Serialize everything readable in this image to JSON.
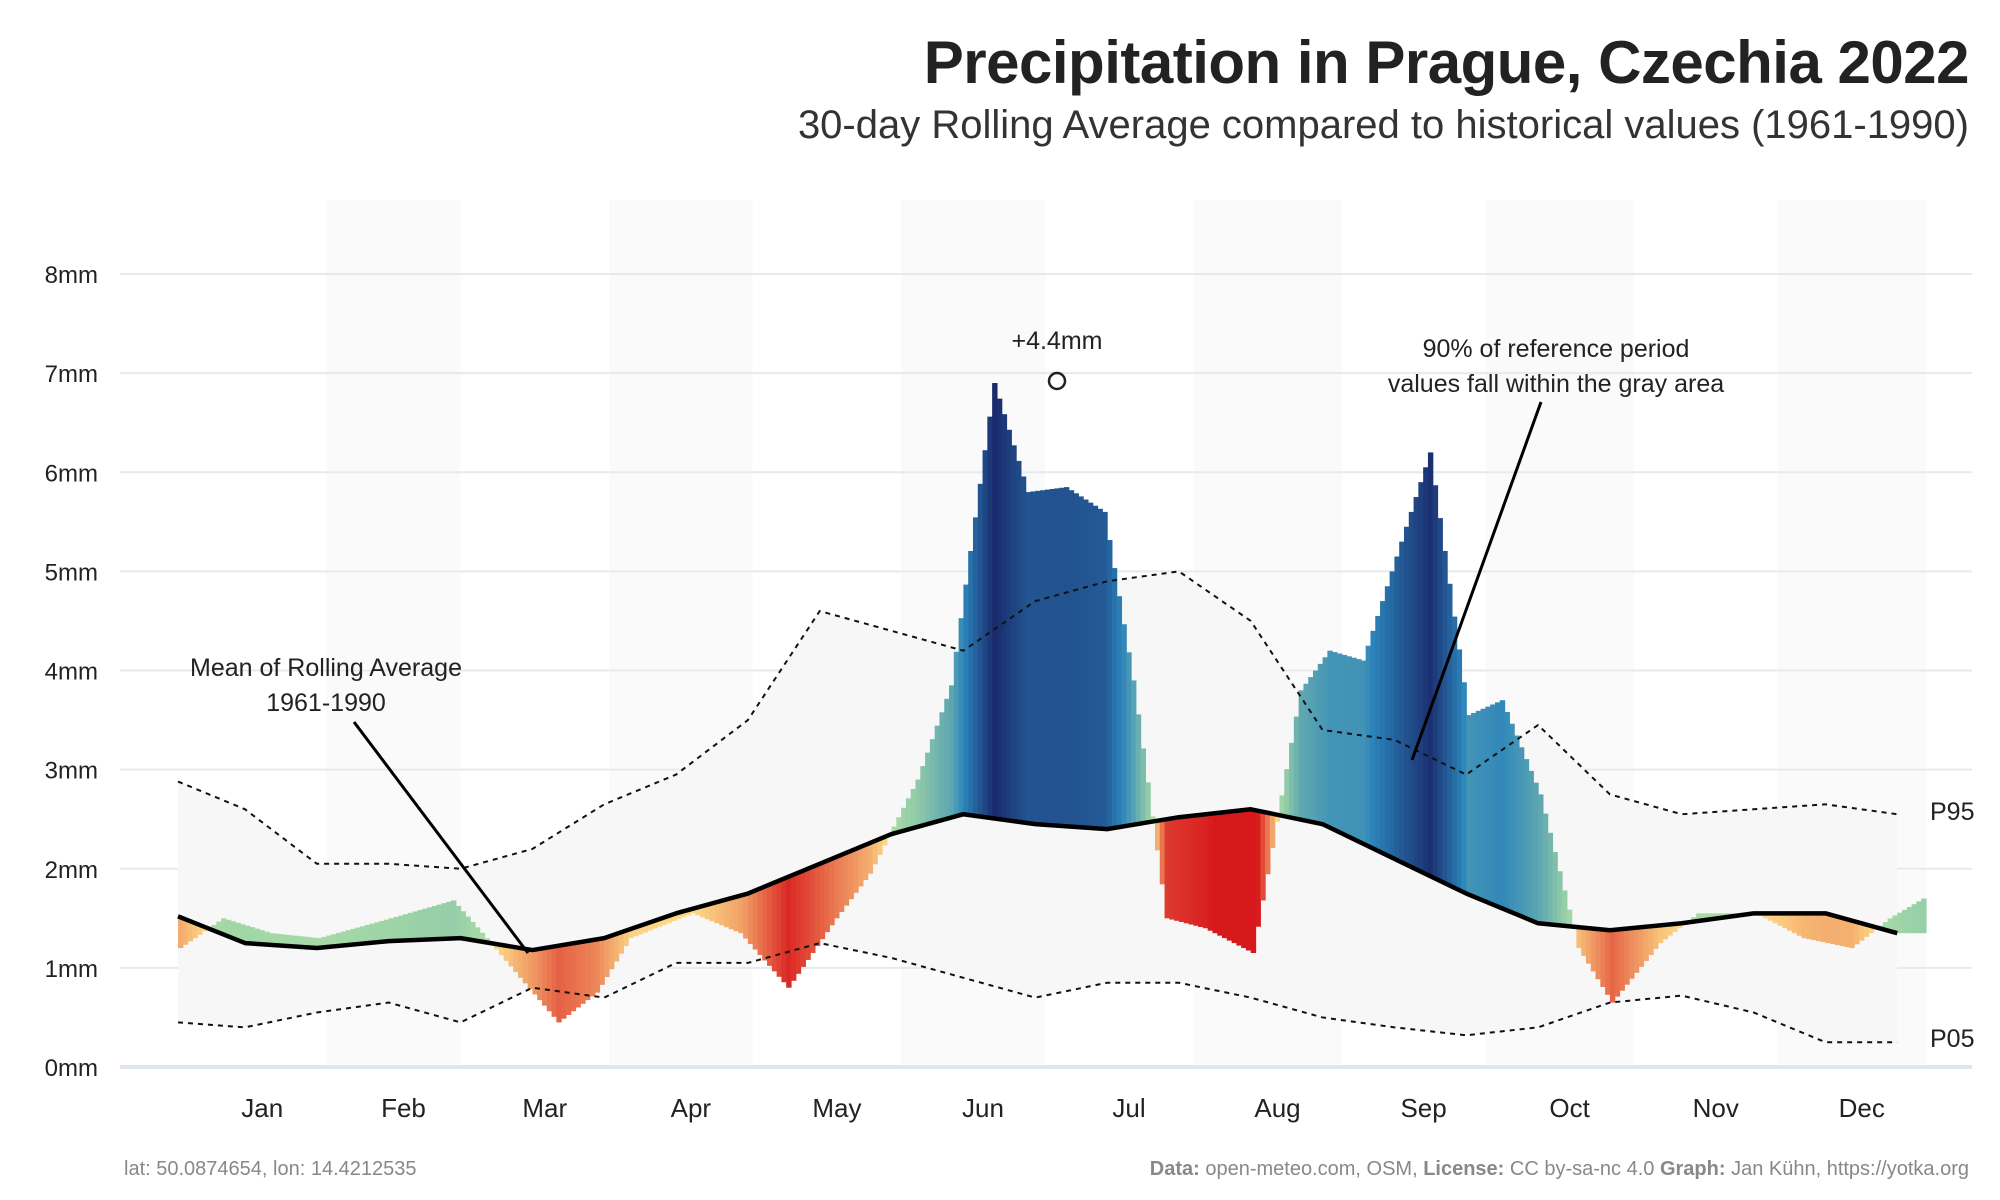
{
  "title": "Precipitation in Prague, Czechia 2022",
  "subtitle": "30-day Rolling Average compared to historical values (1961-1990)",
  "footer": {
    "location": "lat: 50.0874654, lon: 14.4212535",
    "data_label": "Data:",
    "data_value": " open-meteo.com, OSM, ",
    "license_label": "License:",
    "license_value": " CC by-sa-nc 4.0  ",
    "graph_label": "Graph:",
    "graph_value": " Jan Kühn, https://yotka.org"
  },
  "chart_data": {
    "type": "area",
    "y_unit": "mm",
    "ylim": [
      0,
      8
    ],
    "yticks": [
      "0mm",
      "1mm",
      "2mm",
      "3mm",
      "4mm",
      "5mm",
      "6mm",
      "7mm",
      "8mm"
    ],
    "months": [
      "Jan",
      "Feb",
      "Mar",
      "Apr",
      "May",
      "Jun",
      "Jul",
      "Aug",
      "Sep",
      "Oct",
      "Nov",
      "Dec"
    ],
    "day_of_year": [
      1,
      15,
      30,
      45,
      60,
      75,
      90,
      105,
      120,
      135,
      150,
      165,
      180,
      195,
      210,
      225,
      240,
      255,
      270,
      285,
      300,
      315,
      330,
      345,
      360
    ],
    "mean_1961_1990": [
      1.52,
      1.25,
      1.2,
      1.27,
      1.3,
      1.18,
      1.3,
      1.55,
      1.75,
      2.05,
      2.35,
      2.55,
      2.45,
      2.4,
      2.52,
      2.6,
      2.45,
      2.1,
      1.75,
      1.45,
      1.38,
      1.45,
      1.55,
      1.55,
      1.35
    ],
    "p95": [
      2.88,
      2.6,
      2.05,
      2.05,
      2.0,
      2.2,
      2.65,
      2.95,
      3.5,
      4.6,
      4.4,
      4.2,
      4.7,
      4.9,
      5.0,
      4.5,
      3.4,
      3.3,
      2.95,
      3.45,
      2.75,
      2.55,
      2.6,
      2.65,
      2.55
    ],
    "p05": [
      0.45,
      0.4,
      0.55,
      0.65,
      0.45,
      0.8,
      0.7,
      1.05,
      1.05,
      1.25,
      1.1,
      0.9,
      0.7,
      0.85,
      0.85,
      0.7,
      0.5,
      0.4,
      0.32,
      0.4,
      0.65,
      0.72,
      0.55,
      0.25,
      0.25
    ],
    "rolling_2022": [
      1.2,
      1.5,
      1.35,
      1.3,
      1.5,
      1.68,
      1.3,
      0.9,
      0.45,
      0.75,
      1.3,
      1.55,
      1.35,
      0.8,
      1.5,
      1.95,
      2.9,
      3.85,
      6.9,
      5.8,
      5.85,
      5.6,
      3.9,
      1.5,
      1.4,
      1.15,
      3.8,
      4.2,
      4.1,
      5.0,
      6.2,
      3.55,
      3.7,
      2.75,
      1.2,
      0.65,
      1.25,
      1.55,
      1.55,
      1.3,
      1.2,
      1.5,
      1.7
    ],
    "rolling_2022_day": [
      1,
      10,
      20,
      30,
      45,
      58,
      65,
      72,
      80,
      88,
      95,
      108,
      118,
      128,
      138,
      145,
      155,
      162,
      171,
      178,
      186,
      194,
      200,
      207,
      215,
      225,
      235,
      241,
      248,
      254,
      262,
      270,
      277,
      285,
      293,
      300,
      310,
      318,
      330,
      340,
      350,
      358,
      365
    ],
    "annotations": {
      "peak_label": "+4.4mm",
      "gray_area_line1": "90% of reference period",
      "gray_area_line2": "values fall within the gray area",
      "mean_line1": "Mean of Rolling Average",
      "mean_line2": "1961-1990",
      "p95_label": "P95",
      "p05_label": "P05"
    },
    "colors": {
      "dry_strong": "#d7191c",
      "dry_light": "#fee08b",
      "wet_light": "#abdda4",
      "wet_mid": "#2b83ba",
      "wet_strong": "#1a2a6c",
      "band": "#f7f7f7",
      "mean_line": "#000000"
    }
  }
}
